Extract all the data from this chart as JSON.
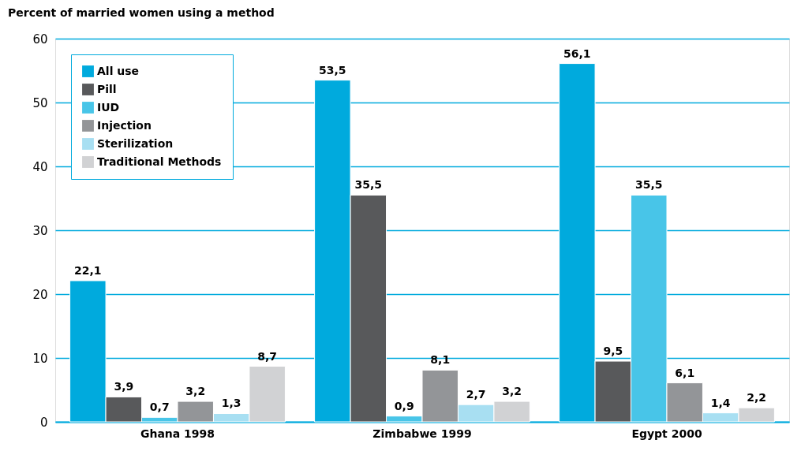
{
  "chart_data": {
    "type": "bar",
    "title": "Percent of married women using a method",
    "categories": [
      "Ghana 1998",
      "Zimbabwe  1999",
      "Egypt 2000"
    ],
    "series": [
      {
        "name": "All use",
        "color": "#00aadd",
        "values": [
          22.1,
          53.5,
          56.1
        ],
        "value_labels": [
          "22,1",
          "53,5",
          "56,1"
        ]
      },
      {
        "name": "Pill",
        "color": "#58595b",
        "values": [
          3.9,
          35.5,
          9.5
        ],
        "value_labels": [
          "3,9",
          "35,5",
          "9,5"
        ]
      },
      {
        "name": "IUD",
        "color": "#48c5e8",
        "values": [
          0.7,
          0.9,
          35.5
        ],
        "value_labels": [
          "0,7",
          "0,9",
          "35,5"
        ]
      },
      {
        "name": "Injection",
        "color": "#939598",
        "values": [
          3.2,
          8.1,
          6.1
        ],
        "value_labels": [
          "3,2",
          "8,1",
          "6,1"
        ]
      },
      {
        "name": "Sterilization",
        "color": "#a8dff2",
        "values": [
          1.3,
          2.7,
          1.4
        ],
        "value_labels": [
          "1,3",
          "2,7",
          "1,4"
        ]
      },
      {
        "name": "Traditional Methods",
        "color": "#d1d2d4",
        "values": [
          8.7,
          3.2,
          2.2
        ],
        "value_labels": [
          "8,7",
          "3,2",
          "2,2"
        ]
      }
    ],
    "ylim": [
      0,
      60
    ],
    "yticks": [
      0,
      10,
      20,
      30,
      40,
      50,
      60
    ],
    "grid": "y",
    "legend": "top left"
  }
}
